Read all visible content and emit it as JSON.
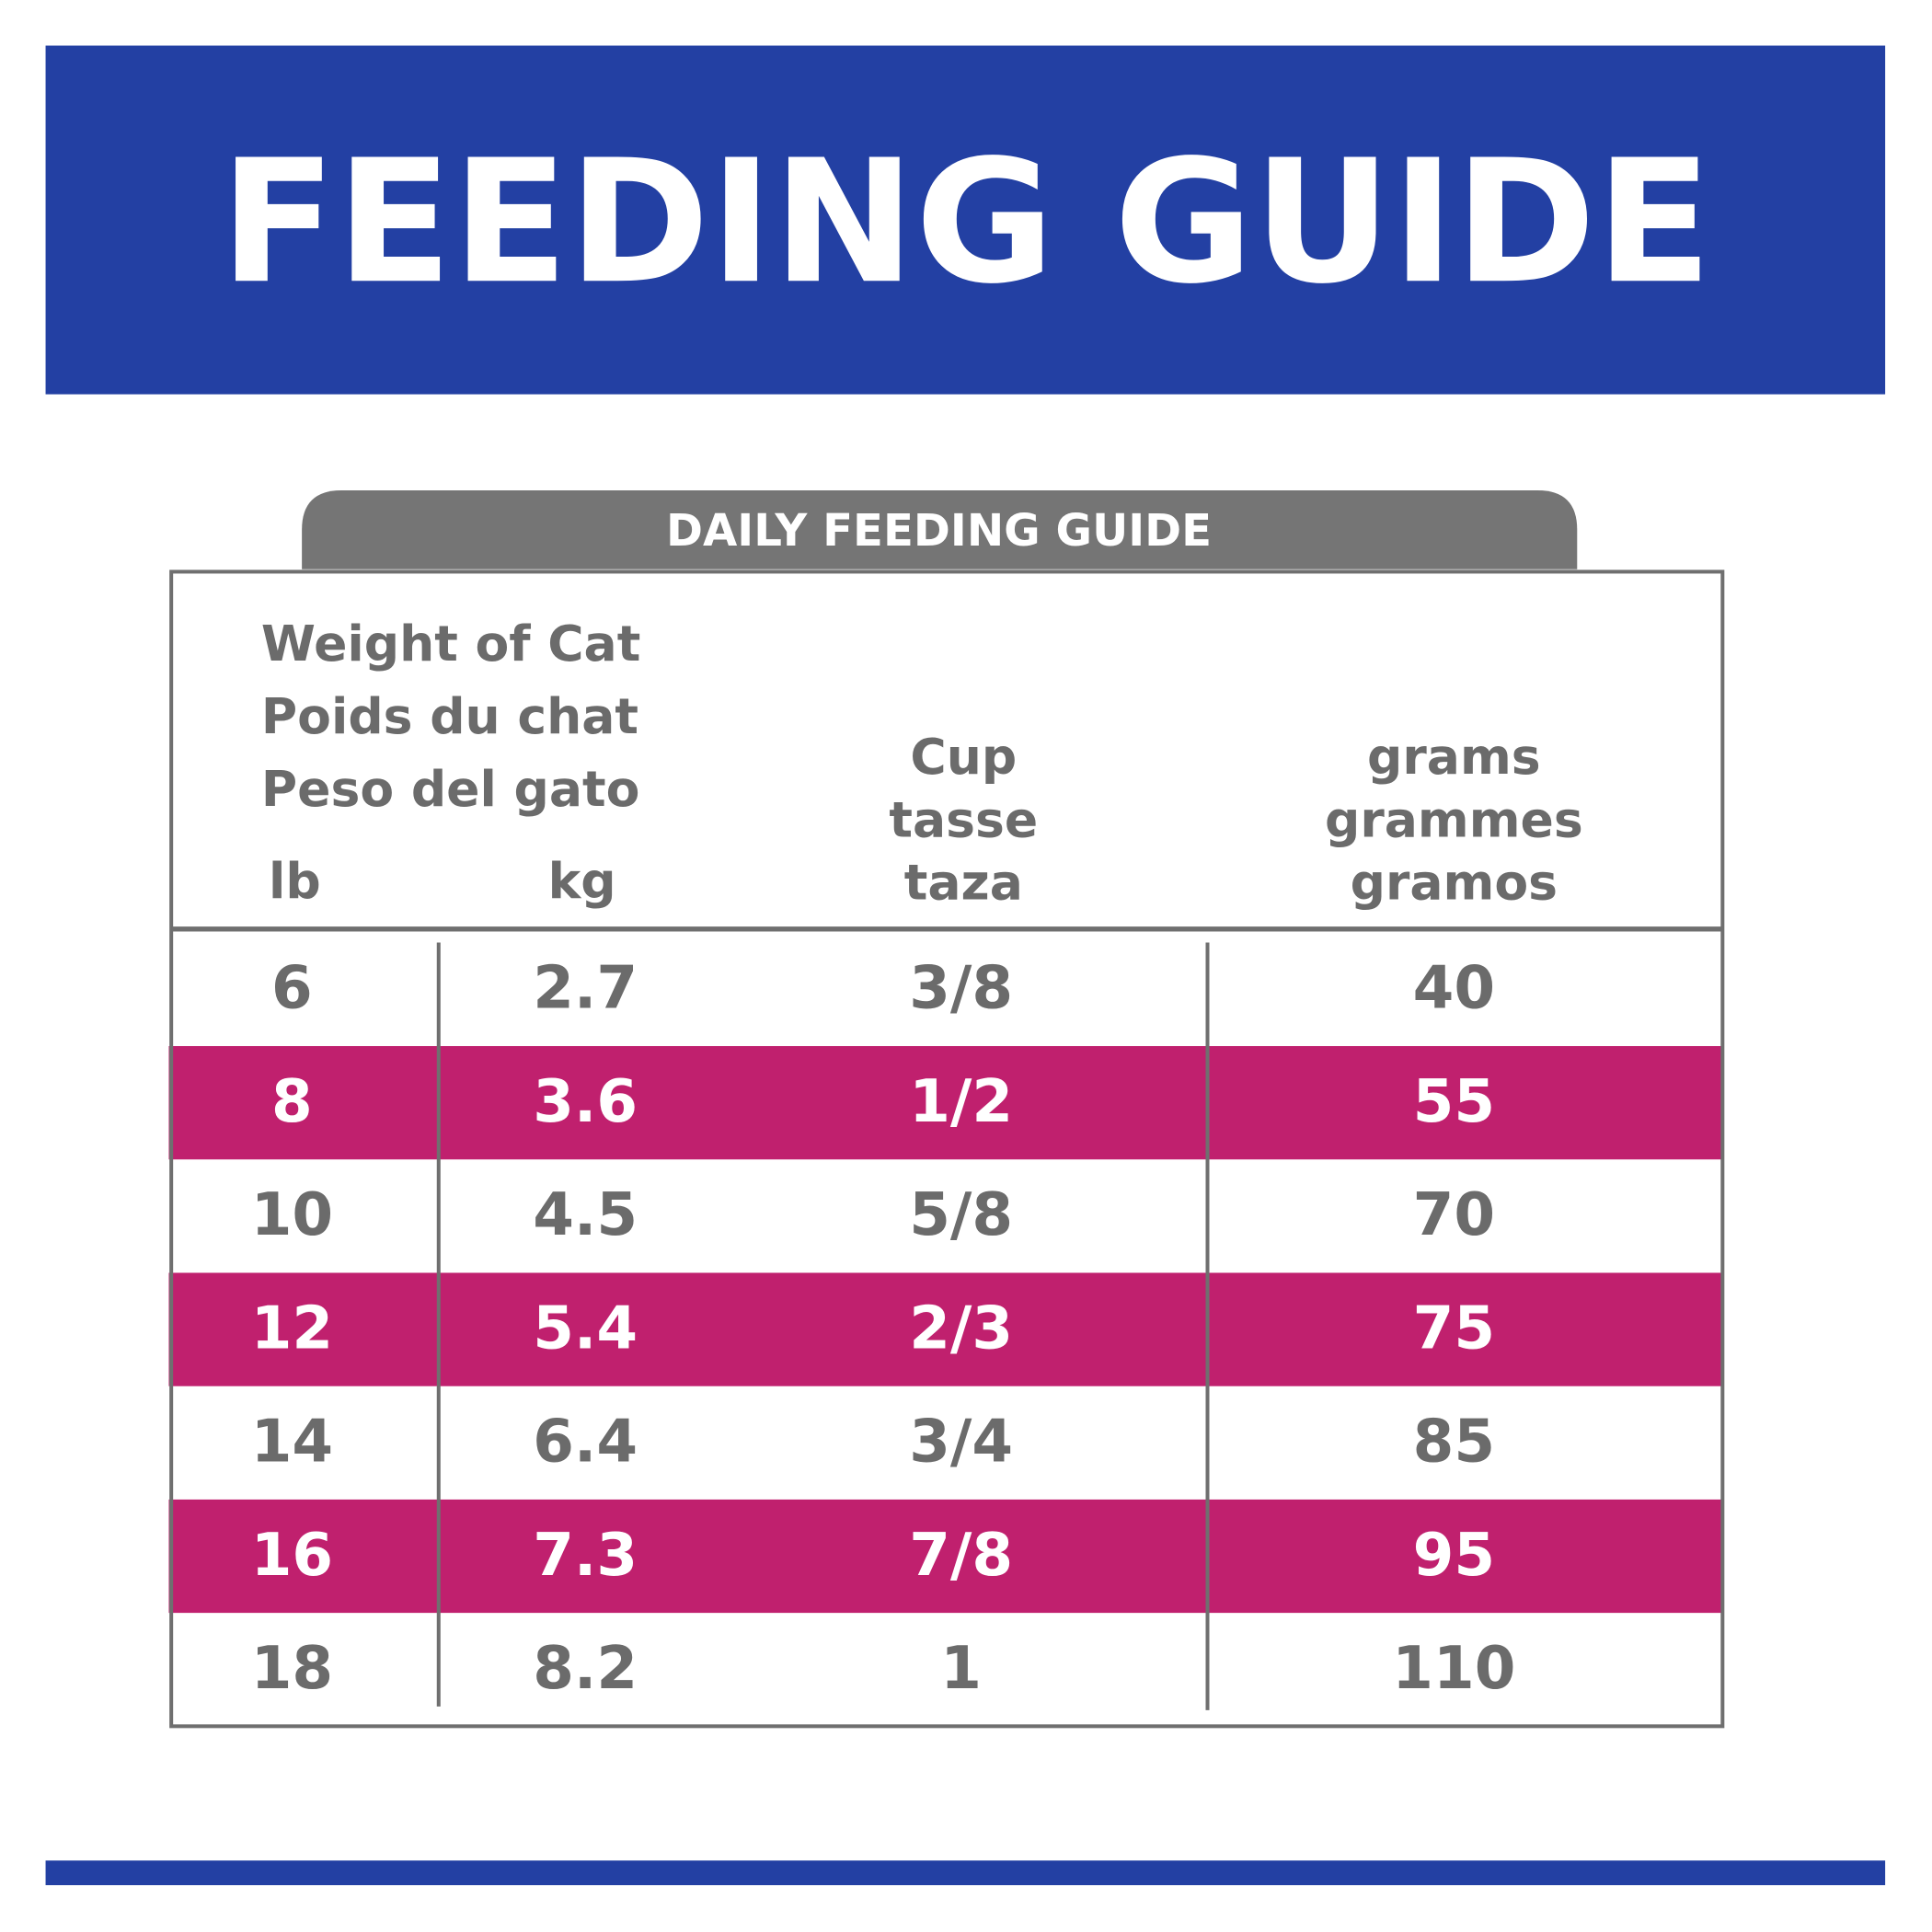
{
  "header": {
    "title": "FEEDING GUIDE"
  },
  "table": {
    "caption": "DAILY FEEDING GUIDE",
    "weight_header": [
      "Weight of Cat",
      "Poids du chat",
      "Peso del gato"
    ],
    "unit_headers": [
      "lb",
      "kg"
    ],
    "cup_header": [
      "Cup",
      "tasse",
      "taza"
    ],
    "grams_header": [
      "grams",
      "grammes",
      "gramos"
    ],
    "rows": [
      [
        6,
        2.7,
        "3/8",
        40
      ],
      [
        8,
        3.6,
        "1/2",
        55
      ],
      [
        10,
        4.5,
        "5/8",
        70
      ],
      [
        12,
        5.4,
        "2/3",
        75
      ],
      [
        14,
        6.4,
        "3/4",
        85
      ],
      [
        16,
        7.3,
        "7/8",
        95
      ],
      [
        18,
        8.2,
        "1",
        110
      ]
    ]
  }
}
